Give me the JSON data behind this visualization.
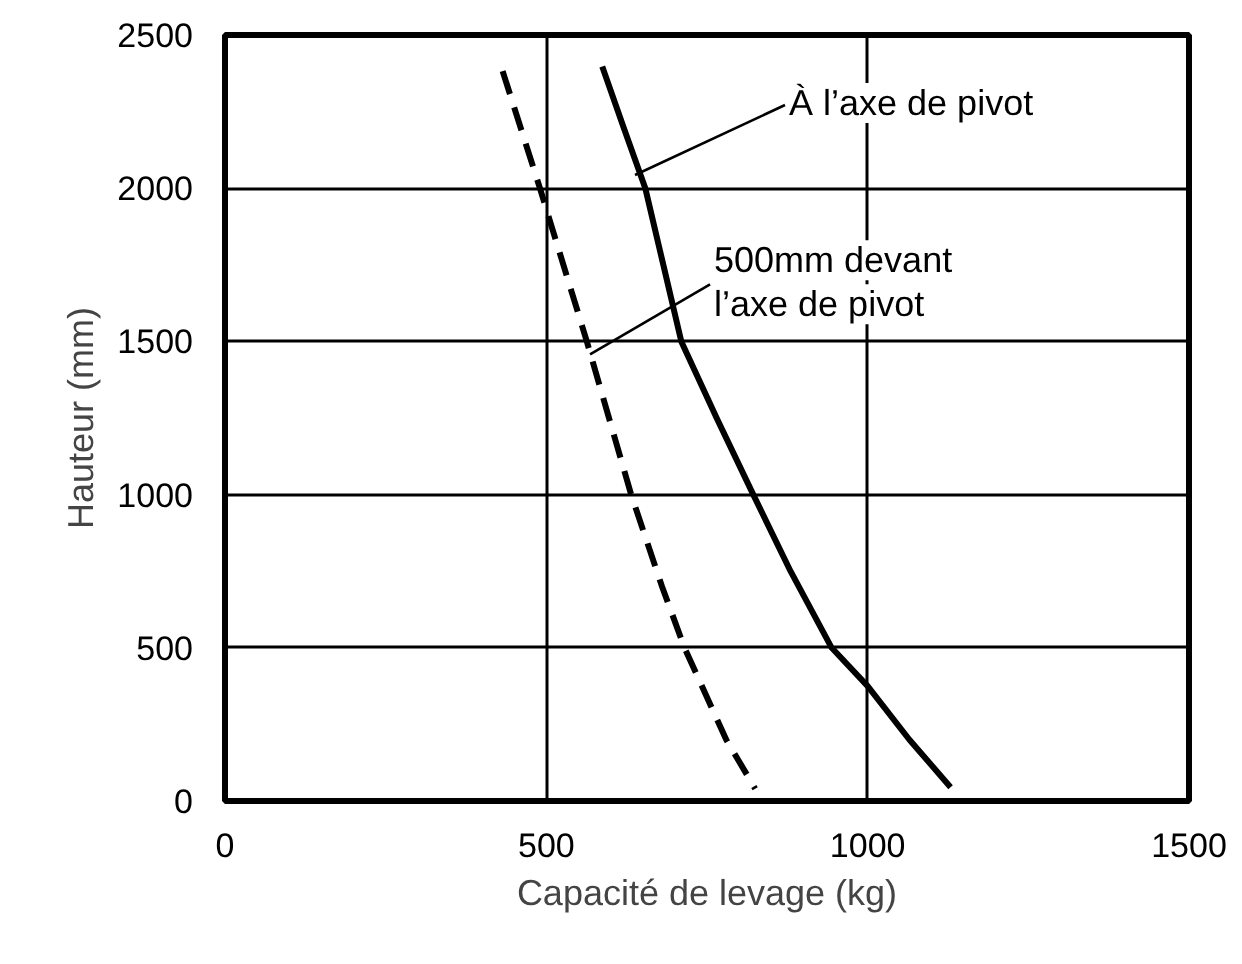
{
  "chart_data": {
    "type": "line",
    "xlabel": "Capacité de levage (kg)",
    "ylabel": "Hauteur (mm)",
    "series": [
      {
        "color": "#000000",
        "line_style": "solid",
        "x": [
          587,
          620,
          654,
          682,
          710,
          765,
          822,
          880,
          944,
          1000,
          1065,
          1129
        ],
        "values": [
          2397,
          2200,
          2000,
          1750,
          1500,
          1250,
          1000,
          750,
          500,
          375,
          200,
          45
        ]
      },
      {
        "color": "#000000",
        "line_style": "dashed",
        "x": [
          432,
          490,
          563,
          632,
          680,
          715,
          780,
          825
        ],
        "values": [
          2382,
          2000,
          1500,
          1000,
          700,
          500,
          200,
          40
        ]
      }
    ],
    "annotations": [
      {
        "text": "À l’axe de pivot",
        "x": 638,
        "y": 2043
      },
      {
        "text": "500mm devant\nl’axe de pivot",
        "x": 568,
        "y": 1458
      }
    ],
    "xlim": [
      0,
      1500
    ],
    "ylim": [
      0,
      2500
    ],
    "xticks": [
      0,
      500,
      1000,
      1500
    ],
    "yticks": [
      0,
      500,
      1000,
      1500,
      2000,
      2500
    ],
    "grid": true
  }
}
